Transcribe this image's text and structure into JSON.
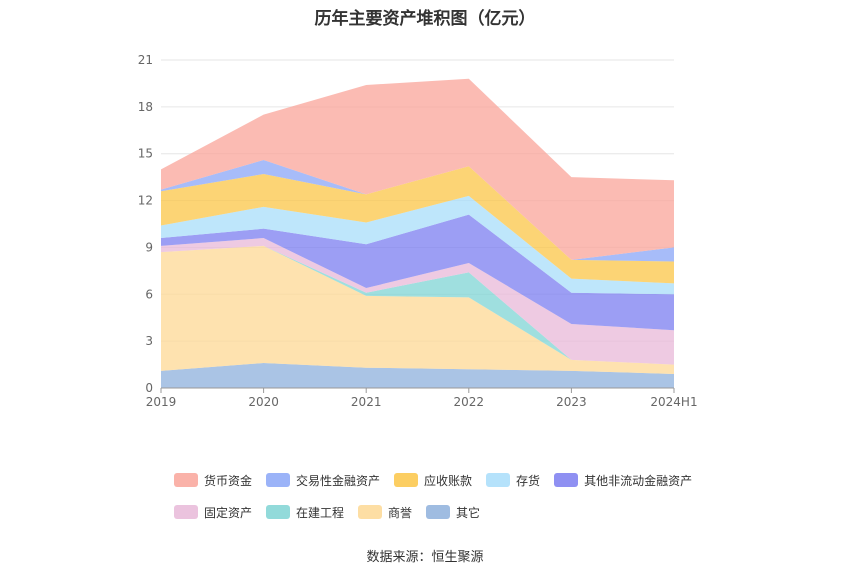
{
  "chart_data": {
    "type": "area",
    "stacked": true,
    "title": "历年主要资产堆积图（亿元）",
    "categories": [
      "2019",
      "2020",
      "2021",
      "2022",
      "2023",
      "2024H1"
    ],
    "ylim": [
      0,
      21
    ],
    "yticks": [
      0,
      3,
      6,
      9,
      12,
      15,
      18,
      21
    ],
    "grid": true,
    "legend_position": "bottom",
    "series": [
      {
        "name": "其它",
        "color": "#8eb0dc",
        "values": [
          1.1,
          1.6,
          1.3,
          1.2,
          1.1,
          0.9
        ]
      },
      {
        "name": "商誉",
        "color": "#fdd894",
        "values": [
          7.6,
          7.5,
          4.6,
          4.6,
          0.7,
          0.6
        ]
      },
      {
        "name": "在建工程",
        "color": "#7fd4d4",
        "values": [
          0.0,
          0.0,
          0.2,
          1.6,
          0.0,
          0.0
        ]
      },
      {
        "name": "固定资产",
        "color": "#e8b8d8",
        "values": [
          0.4,
          0.5,
          0.3,
          0.6,
          2.3,
          2.2
        ]
      },
      {
        "name": "其他非流动金融资产",
        "color": "#7b7df0",
        "values": [
          0.5,
          0.6,
          2.8,
          3.1,
          2.0,
          2.3
        ]
      },
      {
        "name": "存货",
        "color": "#a8ddfa",
        "values": [
          0.8,
          1.4,
          1.4,
          1.2,
          0.9,
          0.7
        ]
      },
      {
        "name": "应收账款",
        "color": "#fbc547",
        "values": [
          2.2,
          2.1,
          1.8,
          1.9,
          1.2,
          1.4
        ]
      },
      {
        "name": "交易性金融资产",
        "color": "#8aa6f7",
        "values": [
          0.1,
          0.9,
          0.0,
          0.0,
          0.0,
          0.9
        ]
      },
      {
        "name": "货币资金",
        "color": "#f9a49a",
        "values": [
          1.3,
          2.9,
          7.0,
          5.6,
          5.3,
          4.3
        ]
      }
    ]
  },
  "legend_rows": [
    [
      "货币资金",
      "交易性金融资产",
      "应收账款",
      "存货",
      "其他非流动金融资产"
    ],
    [
      "固定资产",
      "在建工程",
      "商誉",
      "其它"
    ]
  ],
  "source_text": "数据来源：恒生聚源"
}
